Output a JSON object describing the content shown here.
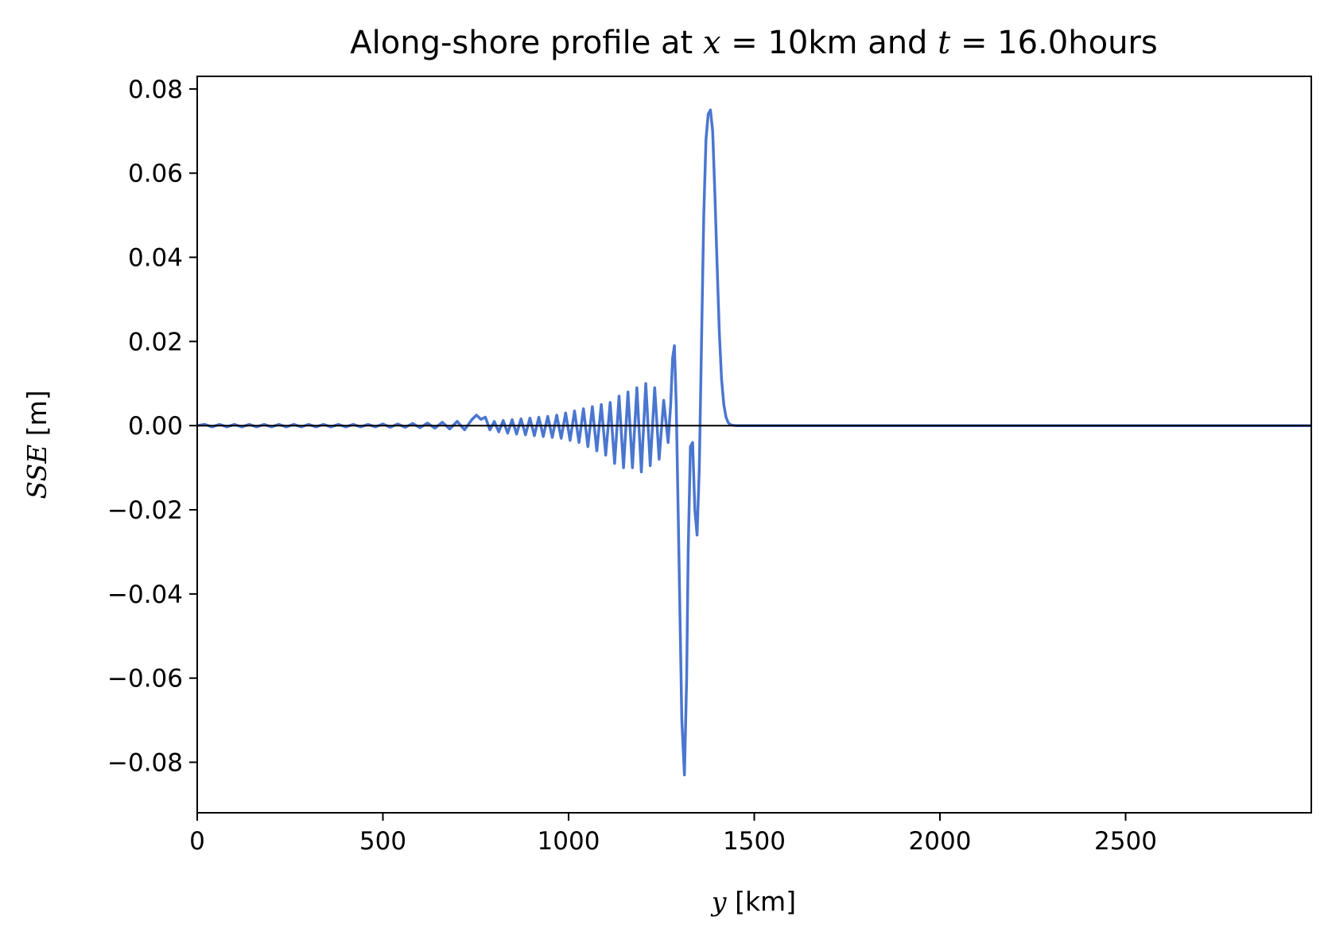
{
  "chart_data": {
    "type": "line",
    "title": {
      "prefix": "Along-shore profile at ",
      "x_var": "x",
      "x_eq": " = 10km and ",
      "t_var": "t",
      "t_eq": " = 16.0hours"
    },
    "xlabel": {
      "var": "y",
      "unit": " [km]"
    },
    "ylabel": {
      "var": "SSE",
      "unit": " [m]"
    },
    "xlim": [
      0,
      3000
    ],
    "ylim": [
      -0.092,
      0.083
    ],
    "x_ticks": [
      0,
      500,
      1000,
      1500,
      2000,
      2500
    ],
    "x_tick_labels": [
      "0",
      "500",
      "1000",
      "1500",
      "2000",
      "2500"
    ],
    "y_ticks": [
      0.08,
      0.06,
      0.04,
      0.02,
      0.0,
      -0.02,
      -0.04,
      -0.06,
      -0.08
    ],
    "y_tick_labels": [
      "0.08",
      "0.06",
      "0.04",
      "0.02",
      "0.00",
      "−0.02",
      "−0.04",
      "−0.06",
      "−0.08"
    ],
    "grid": false,
    "zero_line": true,
    "series": [
      {
        "color": "#4a76d0",
        "x": [
          0,
          20,
          40,
          60,
          80,
          100,
          120,
          140,
          160,
          180,
          200,
          220,
          240,
          260,
          280,
          300,
          320,
          340,
          360,
          380,
          400,
          420,
          440,
          460,
          480,
          500,
          520,
          540,
          560,
          580,
          600,
          620,
          640,
          660,
          680,
          700,
          720,
          740,
          752,
          764,
          776,
          788,
          800,
          812,
          824,
          836,
          848,
          860,
          872,
          884,
          896,
          908,
          920,
          932,
          944,
          956,
          968,
          980,
          992,
          1004,
          1016,
          1028,
          1040,
          1052,
          1064,
          1076,
          1088,
          1100,
          1112,
          1124,
          1136,
          1148,
          1160,
          1172,
          1184,
          1196,
          1208,
          1220,
          1232,
          1244,
          1256,
          1268,
          1275,
          1280,
          1285,
          1290,
          1297,
          1305,
          1312,
          1318,
          1322,
          1328,
          1334,
          1340,
          1346,
          1352,
          1358,
          1364,
          1370,
          1376,
          1382,
          1388,
          1394,
          1400,
          1406,
          1412,
          1418,
          1424,
          1430,
          1436,
          1442,
          1450,
          1470,
          1500,
          1600,
          1800,
          2000,
          2200,
          2400,
          2600,
          2800,
          3000
        ],
        "y": [
          0.0,
          0.0003,
          -0.0003,
          0.0003,
          -0.0003,
          0.0003,
          -0.0003,
          0.0003,
          -0.0003,
          0.0003,
          -0.0003,
          0.0003,
          -0.0003,
          0.0003,
          -0.0003,
          0.0003,
          -0.0003,
          0.0003,
          -0.0003,
          0.0003,
          -0.0003,
          0.0003,
          -0.0003,
          0.0003,
          -0.0003,
          0.0004,
          -0.0004,
          0.0004,
          -0.0004,
          0.0005,
          -0.0005,
          0.0006,
          -0.0006,
          0.0008,
          -0.0008,
          0.001,
          -0.001,
          0.0015,
          0.0025,
          0.0015,
          0.002,
          -0.001,
          0.001,
          -0.0015,
          0.0012,
          -0.0018,
          0.0014,
          -0.002,
          0.0016,
          -0.0022,
          0.0018,
          -0.0024,
          0.002,
          -0.0026,
          0.0022,
          -0.0028,
          0.0025,
          -0.003,
          0.003,
          -0.0035,
          0.0035,
          -0.004,
          0.004,
          -0.005,
          0.0045,
          -0.006,
          0.005,
          -0.007,
          0.0055,
          -0.009,
          0.007,
          -0.01,
          0.008,
          -0.01,
          0.009,
          -0.011,
          0.01,
          -0.0095,
          0.009,
          -0.008,
          0.006,
          -0.004,
          0.005,
          0.016,
          0.019,
          0.005,
          -0.03,
          -0.07,
          -0.083,
          -0.06,
          -0.03,
          -0.005,
          -0.004,
          -0.02,
          -0.026,
          -0.01,
          0.02,
          0.05,
          0.068,
          0.074,
          0.075,
          0.07,
          0.055,
          0.038,
          0.022,
          0.011,
          0.005,
          0.002,
          0.0007,
          0.0002,
          0.0001,
          0.0,
          0.0,
          0.0,
          0.0,
          0.0,
          0.0,
          0.0,
          0.0,
          0.0,
          0.0,
          0.0
        ]
      }
    ]
  }
}
